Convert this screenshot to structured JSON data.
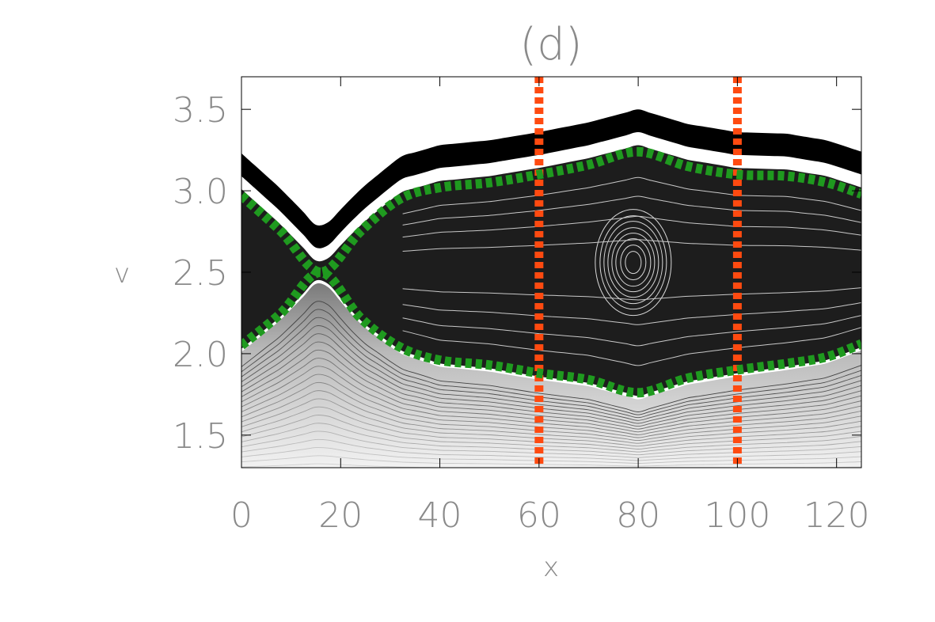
{
  "chart_data": {
    "type": "contour",
    "title": "(d)",
    "xlabel": "x",
    "ylabel": "v",
    "xlim": [
      0,
      125
    ],
    "ylim": [
      1.3,
      3.7
    ],
    "xticks": [
      "0",
      "20",
      "40",
      "60",
      "80",
      "100",
      "120"
    ],
    "yticks": [
      "1.5",
      "2.0",
      "2.5",
      "3.0",
      "3.5"
    ],
    "xtick_values": [
      0,
      20,
      40,
      60,
      80,
      100,
      120
    ],
    "ytick_values": [
      1.5,
      2.0,
      2.5,
      3.0,
      3.5
    ],
    "vertical_lines": [
      {
        "x": 60,
        "color": "#ff4a10",
        "style": "dotted"
      },
      {
        "x": 100,
        "color": "#ff4a10",
        "style": "dotted"
      }
    ],
    "separatrix": {
      "color": "#1f9a1f",
      "style": "dotted",
      "x_point": {
        "x": 16,
        "v": 2.5
      },
      "upper": [
        [
          0,
          2.97
        ],
        [
          8,
          2.75
        ],
        [
          16,
          2.5
        ],
        [
          24,
          2.75
        ],
        [
          32,
          2.95
        ],
        [
          40,
          3.02
        ],
        [
          50,
          3.05
        ],
        [
          60,
          3.1
        ],
        [
          70,
          3.16
        ],
        [
          80,
          3.24
        ],
        [
          90,
          3.15
        ],
        [
          100,
          3.1
        ],
        [
          110,
          3.09
        ],
        [
          118,
          3.05
        ],
        [
          125,
          2.98
        ]
      ],
      "lower": [
        [
          0,
          2.05
        ],
        [
          8,
          2.25
        ],
        [
          16,
          2.5
        ],
        [
          24,
          2.22
        ],
        [
          32,
          2.04
        ],
        [
          40,
          1.96
        ],
        [
          50,
          1.93
        ],
        [
          60,
          1.88
        ],
        [
          70,
          1.84
        ],
        [
          80,
          1.76
        ],
        [
          90,
          1.85
        ],
        [
          100,
          1.9
        ],
        [
          110,
          1.94
        ],
        [
          118,
          1.98
        ],
        [
          125,
          2.06
        ]
      ]
    },
    "o_point": {
      "x": 79,
      "v": 2.56
    },
    "grid": false
  },
  "colors": {
    "island_fill": "#1d1d1d",
    "band_top": "#000000",
    "contour_light": "#b0b0b0",
    "text": "#8a8a8a"
  }
}
